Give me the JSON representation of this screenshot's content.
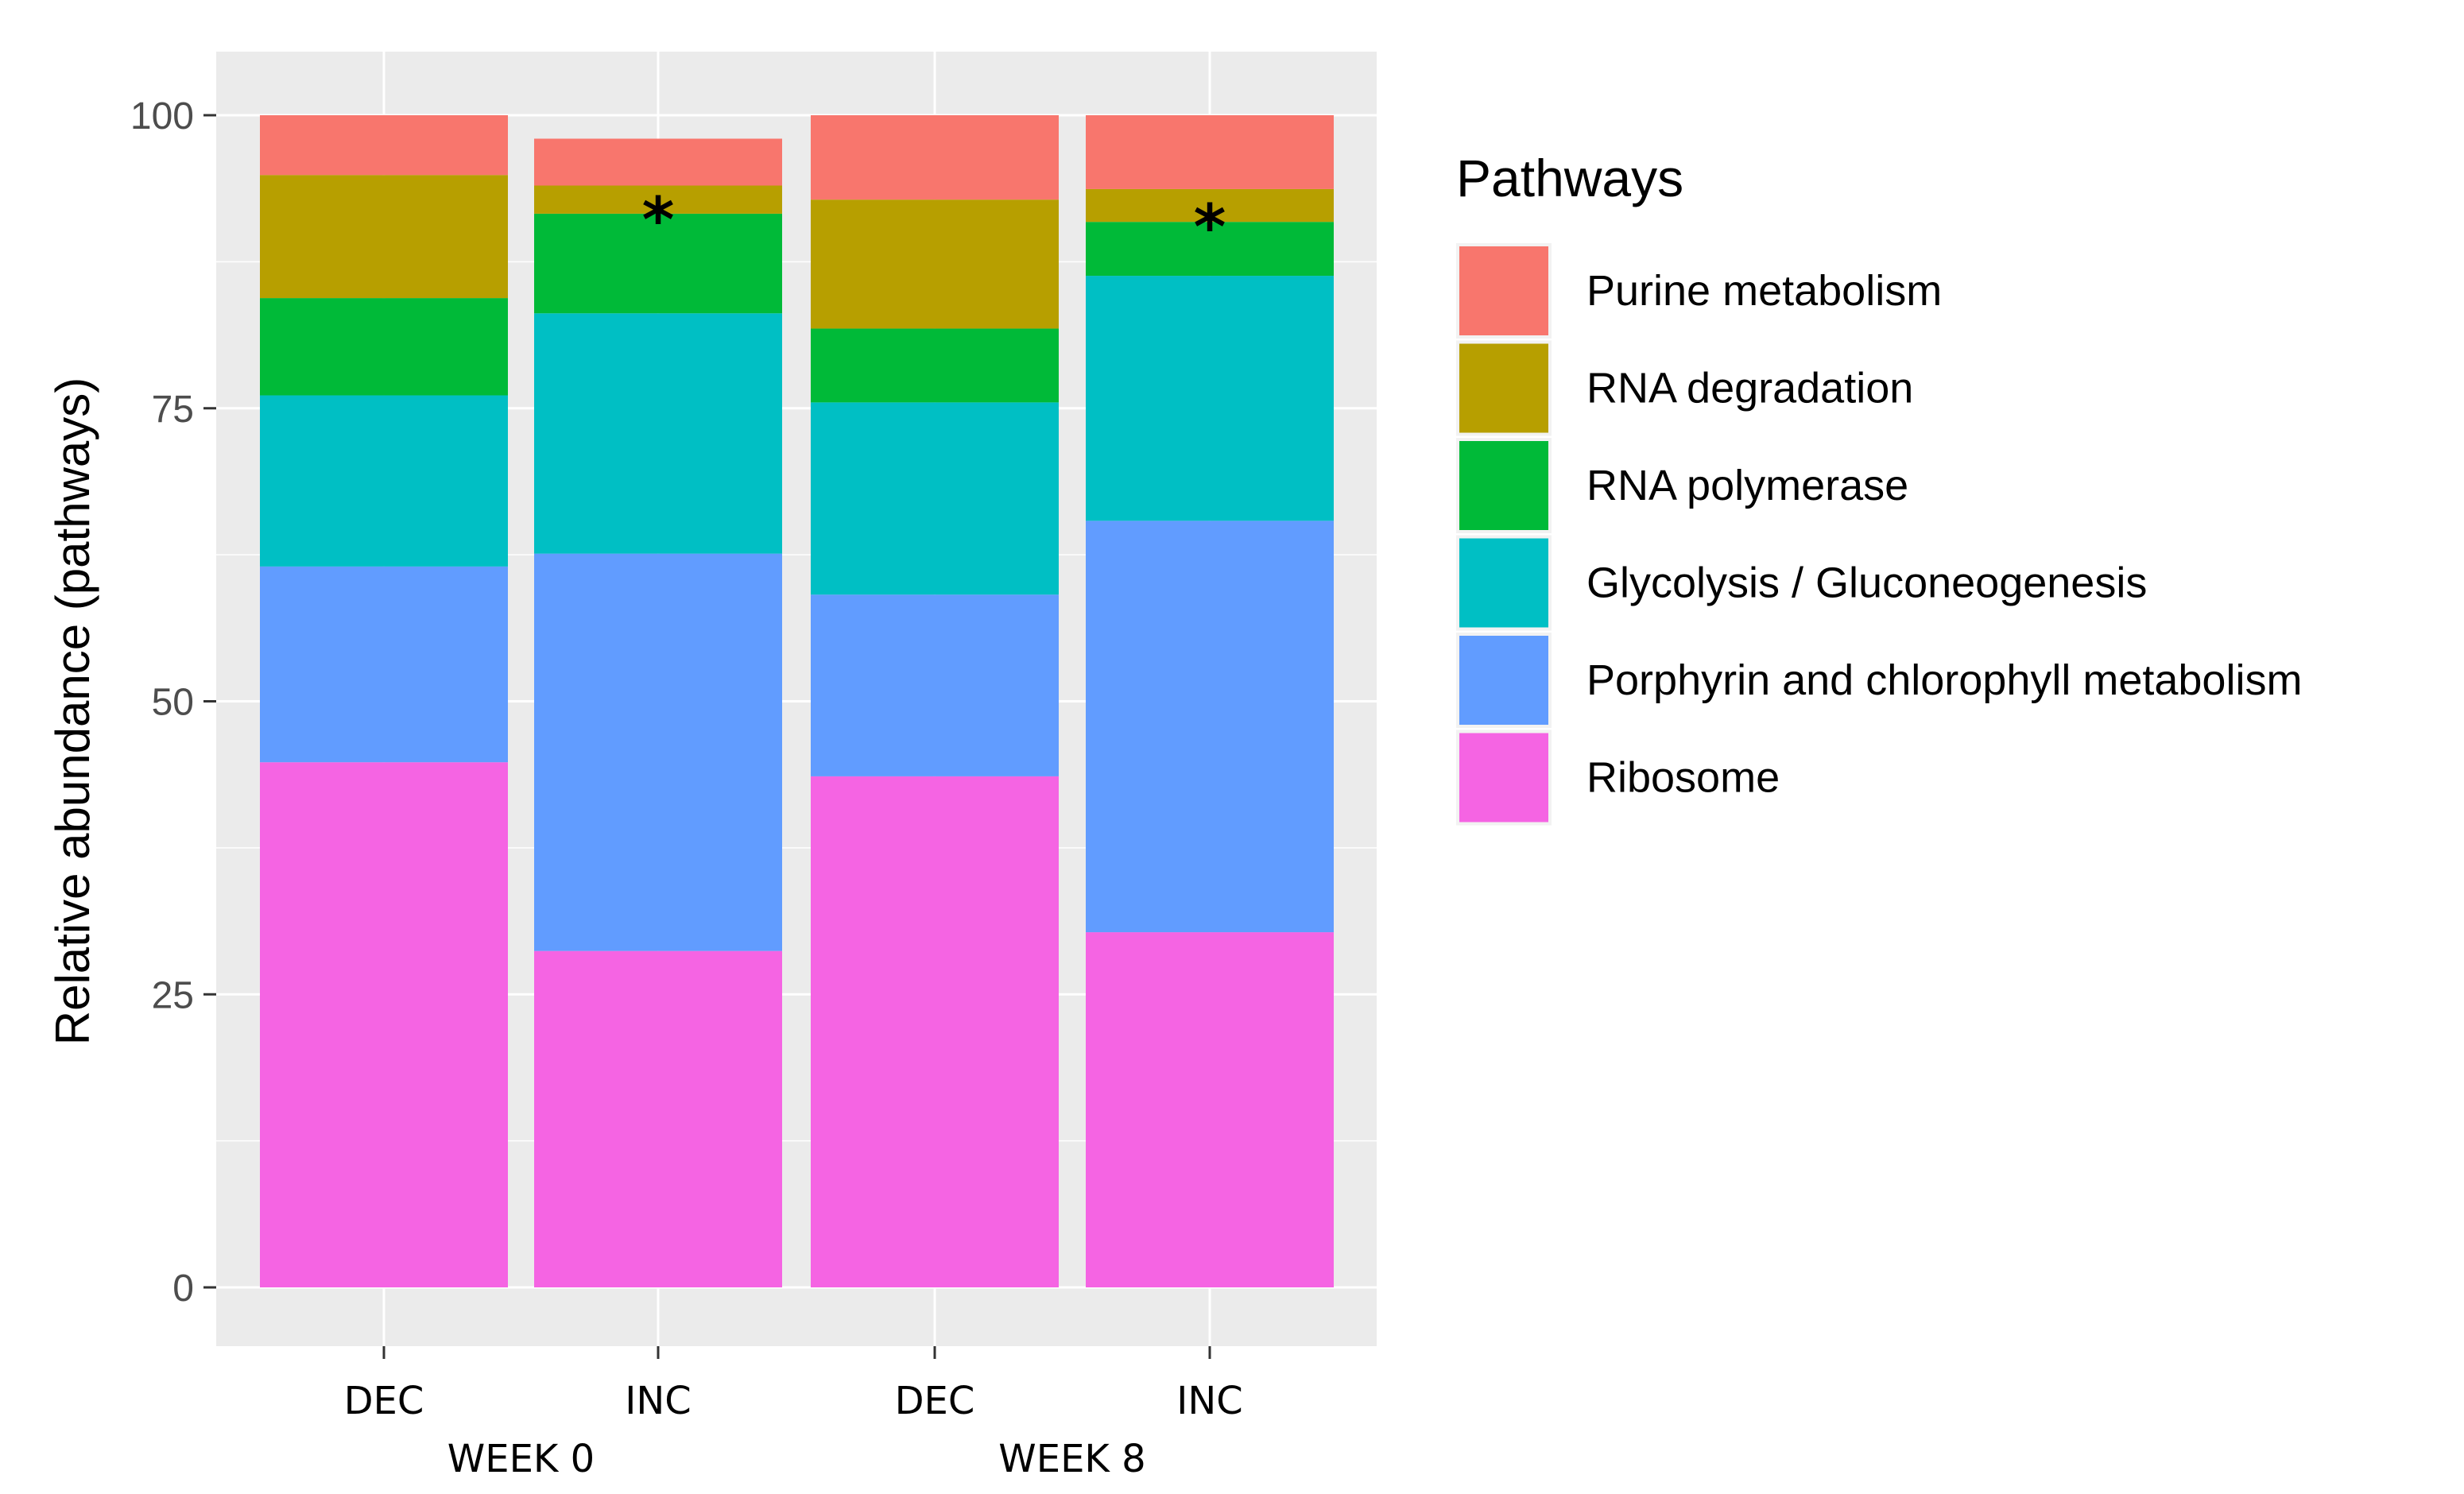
{
  "chart_data": {
    "type": "bar",
    "stacked": true,
    "ylabel": "Relative abundance (pathways)",
    "ylim": [
      -5,
      105
    ],
    "yticks": [
      0,
      25,
      50,
      75,
      100
    ],
    "ytick_labels": [
      "0",
      "25",
      "50",
      "75",
      "100"
    ],
    "categories": [
      "DEC",
      "INC",
      "DEC",
      "INC"
    ],
    "groups": [
      {
        "label": "WEEK 0",
        "members": [
          0,
          1
        ]
      },
      {
        "label": "WEEK 8",
        "members": [
          2,
          3
        ]
      }
    ],
    "legend_title": "Pathways",
    "series": [
      {
        "name": "Ribosome",
        "color": "#F564E3",
        "values": [
          44.8,
          28.7,
          43.6,
          30.3
        ]
      },
      {
        "name": "Porphyrin and chlorophyll metabolism",
        "color": "#619CFF",
        "values": [
          16.7,
          33.9,
          15.5,
          35.1
        ]
      },
      {
        "name": "Glycolysis / Gluconeogenesis",
        "color": "#00BFC4",
        "values": [
          14.6,
          20.5,
          16.4,
          20.9
        ]
      },
      {
        "name": "RNA polymerase",
        "color": "#00BA38",
        "values": [
          8.3,
          8.5,
          6.3,
          4.6
        ]
      },
      {
        "name": "RNA degradation",
        "color": "#B79F00",
        "values": [
          10.5,
          2.4,
          11.0,
          2.8
        ]
      },
      {
        "name": "Purine metabolism",
        "color": "#F8766D",
        "values": [
          5.1,
          4.0,
          7.2,
          6.3
        ]
      }
    ],
    "legend_order": [
      "Purine metabolism",
      "RNA degradation",
      "RNA polymerase",
      "Glycolysis / Gluconeogenesis",
      "Porphyrin and chlorophyll metabolism",
      "Ribosome"
    ],
    "annotations": [
      {
        "text": "*",
        "category_index": 1,
        "y": 91.8
      },
      {
        "text": "*",
        "category_index": 3,
        "y": 91.2
      }
    ],
    "panel_color": "#EBEBEB",
    "grid_color": "#FFFFFF"
  }
}
